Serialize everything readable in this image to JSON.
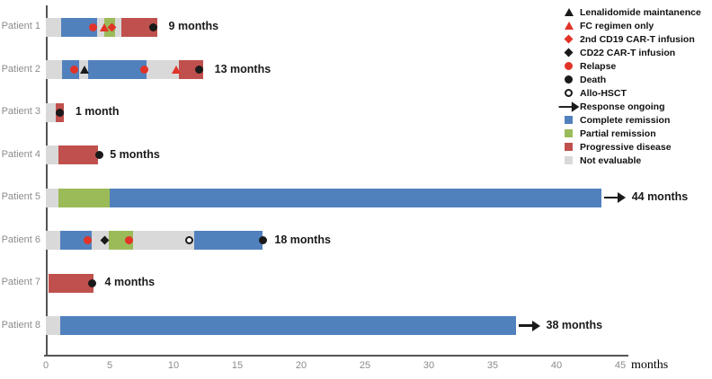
{
  "chart_data": {
    "type": "bar",
    "subtype": "swimmer-plot",
    "title": "",
    "xlabel": "months",
    "ylabel": "",
    "xlim": [
      0,
      45
    ],
    "xticks": [
      0,
      5,
      10,
      15,
      20,
      25,
      30,
      35,
      40,
      45
    ],
    "grid": false,
    "legend_position": "top-right",
    "colors": {
      "complete_remission": "#5181bd",
      "partial_remission": "#9bbb59",
      "progressive_disease": "#c0504d",
      "not_evaluable": "#d9d9d9",
      "marker_red": "#e23328",
      "marker_black": "#1a1a1a",
      "axis": "#555555",
      "tick_text": "#8c8c8c"
    },
    "legend": [
      {
        "label": "Lenalidomide maintanence",
        "marker": "triangle",
        "color": "#1a1a1a"
      },
      {
        "label": "FC regimen only",
        "marker": "triangle",
        "color": "#e23328"
      },
      {
        "label": "2nd CD19 CAR-T infusion",
        "marker": "diamond",
        "color": "#e23328"
      },
      {
        "label": "CD22 CAR-T infusion",
        "marker": "diamond",
        "color": "#1a1a1a"
      },
      {
        "label": "Relapse",
        "marker": "circle",
        "color": "#e23328"
      },
      {
        "label": "Death",
        "marker": "circle",
        "color": "#1a1a1a"
      },
      {
        "label": "Allo-HSCT",
        "marker": "open-circle",
        "color": "#1a1a1a"
      },
      {
        "label": "Response ongoing",
        "marker": "arrow",
        "color": "#1a1a1a"
      },
      {
        "label": "Complete remission",
        "marker": "square",
        "color": "#5181bd"
      },
      {
        "label": "Partial remission",
        "marker": "square",
        "color": "#9bbb59"
      },
      {
        "label": "Progressive disease",
        "marker": "square",
        "color": "#c0504d"
      },
      {
        "label": "Not evaluable",
        "marker": "square",
        "color": "#d9d9d9"
      }
    ],
    "patients": [
      {
        "label": "Patient 1",
        "duration_label": "9 months",
        "ongoing": false,
        "segments": [
          {
            "status": "Not evaluable",
            "start": 0,
            "end": 1.2
          },
          {
            "status": "Complete remission",
            "start": 1.2,
            "end": 4.0
          },
          {
            "status": "Not evaluable",
            "start": 4.0,
            "end": 4.6
          },
          {
            "status": "Partial remission",
            "start": 4.6,
            "end": 5.4
          },
          {
            "status": "Not evaluable",
            "start": 5.4,
            "end": 5.9
          },
          {
            "status": "Progressive disease",
            "start": 5.9,
            "end": 8.7
          }
        ],
        "events": [
          {
            "type": "Relapse",
            "month": 3.7
          },
          {
            "type": "FC regimen only",
            "month": 4.6
          },
          {
            "type": "2nd CD19 CAR-T infusion",
            "month": 5.2
          },
          {
            "type": "Death",
            "month": 8.4
          }
        ]
      },
      {
        "label": "Patient 2",
        "duration_label": "13 months",
        "ongoing": false,
        "segments": [
          {
            "status": "Not evaluable",
            "start": 0,
            "end": 1.3
          },
          {
            "status": "Complete remission",
            "start": 1.3,
            "end": 2.6
          },
          {
            "status": "Not evaluable",
            "start": 2.6,
            "end": 3.3
          },
          {
            "status": "Complete remission",
            "start": 3.3,
            "end": 7.9
          },
          {
            "status": "Not evaluable",
            "start": 7.9,
            "end": 10.4
          },
          {
            "status": "Progressive disease",
            "start": 10.4,
            "end": 12.3
          }
        ],
        "events": [
          {
            "type": "Relapse",
            "month": 2.2
          },
          {
            "type": "Lenalidomide maintanence",
            "month": 3.0
          },
          {
            "type": "Relapse",
            "month": 7.7
          },
          {
            "type": "FC regimen only",
            "month": 10.2
          },
          {
            "type": "Death",
            "month": 12.0
          }
        ]
      },
      {
        "label": "Patient 3",
        "duration_label": "1 month",
        "ongoing": false,
        "segments": [
          {
            "status": "Not evaluable",
            "start": 0,
            "end": 0.8
          },
          {
            "status": "Progressive disease",
            "start": 0.8,
            "end": 1.4
          }
        ],
        "events": [
          {
            "type": "Death",
            "month": 1.1
          }
        ]
      },
      {
        "label": "Patient 4",
        "duration_label": "5 months",
        "ongoing": false,
        "segments": [
          {
            "status": "Not evaluable",
            "start": 0,
            "end": 1.0
          },
          {
            "status": "Progressive disease",
            "start": 1.0,
            "end": 4.1
          }
        ],
        "events": [
          {
            "type": "Death",
            "month": 4.2
          }
        ]
      },
      {
        "label": "Patient 5",
        "duration_label": "44 months",
        "ongoing": true,
        "segments": [
          {
            "status": "Not evaluable",
            "start": 0,
            "end": 1.0
          },
          {
            "status": "Partial remission",
            "start": 1.0,
            "end": 5.0
          },
          {
            "status": "Complete remission",
            "start": 5.0,
            "end": 43.5
          }
        ],
        "events": []
      },
      {
        "label": "Patient 6",
        "duration_label": "18 months",
        "ongoing": false,
        "segments": [
          {
            "status": "Not evaluable",
            "start": 0,
            "end": 1.1
          },
          {
            "status": "Complete remission",
            "start": 1.1,
            "end": 3.6
          },
          {
            "status": "Not evaluable",
            "start": 3.6,
            "end": 4.9
          },
          {
            "status": "Partial remission",
            "start": 4.9,
            "end": 6.8
          },
          {
            "status": "Not evaluable",
            "start": 6.8,
            "end": 11.6
          },
          {
            "status": "Complete remission",
            "start": 11.6,
            "end": 17.0
          }
        ],
        "events": [
          {
            "type": "Relapse",
            "month": 3.3
          },
          {
            "type": "CD22 CAR-T infusion",
            "month": 4.6
          },
          {
            "type": "Relapse",
            "month": 6.5
          },
          {
            "type": "Allo-HSCT",
            "month": 11.2
          },
          {
            "type": "Death",
            "month": 17.0
          }
        ]
      },
      {
        "label": "Patient 7",
        "duration_label": "4 months",
        "ongoing": false,
        "segments": [
          {
            "status": "Progressive disease",
            "start": 0.2,
            "end": 3.7
          }
        ],
        "events": [
          {
            "type": "Death",
            "month": 3.6
          }
        ]
      },
      {
        "label": "Patient 8",
        "duration_label": "38 months",
        "ongoing": true,
        "segments": [
          {
            "status": "Not evaluable",
            "start": 0,
            "end": 1.1
          },
          {
            "status": "Complete remission",
            "start": 1.1,
            "end": 36.8
          }
        ],
        "events": []
      }
    ]
  }
}
